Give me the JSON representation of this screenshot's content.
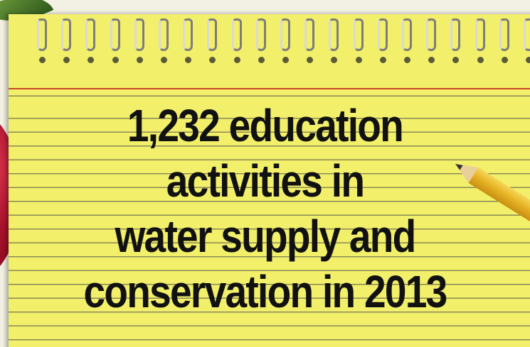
{
  "headline": {
    "line1": "1,232 education",
    "line2": "activities in",
    "line3": "water supply and",
    "line4": "conservation in 2013"
  },
  "colors": {
    "paper": "#f2ef6a",
    "rule_line": "#8a8a55",
    "margin_line": "#c8472a",
    "text": "#111111",
    "apple": "#a8112b",
    "pencil": "#e8b526"
  },
  "decorations": {
    "apple_icon": "apple-icon",
    "leaf_icon": "leaf-icon",
    "pencil_icon": "pencil-icon",
    "spiral_icon": "spiral-binding-icon"
  }
}
